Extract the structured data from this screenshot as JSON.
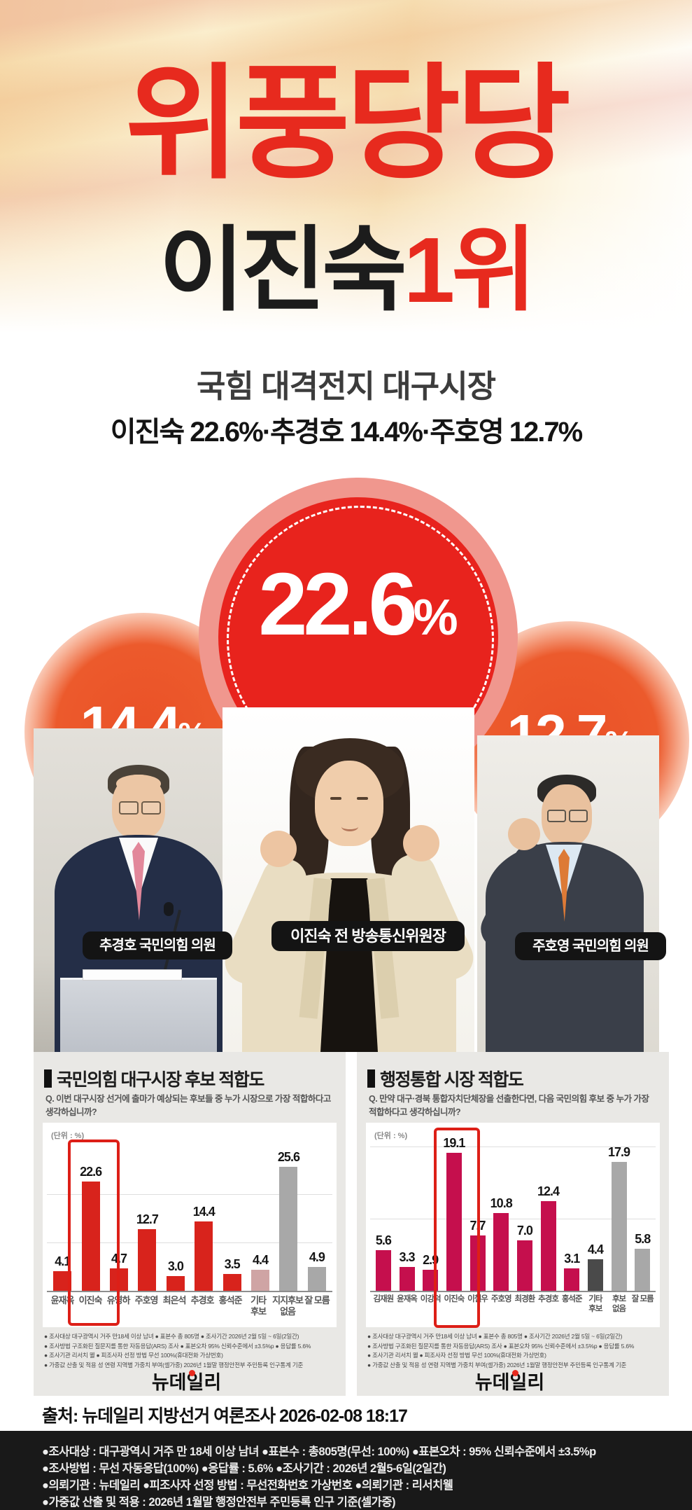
{
  "hero": {
    "title": "위풍당당",
    "name": "이진숙",
    "rank": "1위",
    "tagline": "국힘 대격전지 대구시장",
    "stat_line": "이진숙 22.6%·추경호 14.4%·주호영 12.7%"
  },
  "bubbles": {
    "main": {
      "value": "22.6",
      "unit": "%"
    },
    "left": {
      "value": "14.4",
      "unit": "%"
    },
    "right": {
      "value": "12.7",
      "unit": "%"
    }
  },
  "people": [
    {
      "label": "추경호 국민의힘 의원"
    },
    {
      "label": "이진숙 전 방송통신위원장"
    },
    {
      "label": "주호영 국민의힘 의원"
    }
  ],
  "chart_data": [
    {
      "type": "bar",
      "title": "국민의힘 대구시장 후보 적합도",
      "question": "Q. 이번 대구시장 선거에 출마가 예상되는 후보들 중 누가 시장으로 가장 적합하다고 생각하십니까?",
      "unit_label": "(단위 : %)",
      "categories": [
        "윤재옥",
        "이진숙",
        "유영하",
        "주호영",
        "최은석",
        "추경호",
        "홍석준",
        "기타 후보",
        "지지후보 없음",
        "잘 모름"
      ],
      "value_labels": [
        "4.1",
        "22.6",
        "4.7",
        "12.7",
        "3.0",
        "14.4",
        "3.5",
        "4.4",
        "25.6",
        "4.9"
      ],
      "values": [
        4.1,
        22.6,
        4.7,
        12.7,
        3.0,
        14.4,
        3.5,
        4.4,
        25.6,
        4.9
      ],
      "bar_roles": [
        "red",
        "red",
        "red",
        "red",
        "red",
        "red",
        "red",
        "pink",
        "gray",
        "gray"
      ],
      "highlight_index": 1,
      "ylim": [
        0,
        30
      ],
      "gridlines": [
        10,
        20
      ],
      "legend": "none"
    },
    {
      "type": "bar",
      "title": "행정통합 시장 적합도",
      "question": "Q. 만약 대구·경북 통합자치단체장을 선출한다면, 다음 국민의힘 후보 중 누가 가장 적합하다고 생각하십니까?",
      "unit_label": "(단위 : %)",
      "categories": [
        "김재원",
        "윤재옥",
        "이강덕",
        "이진숙",
        "이철우",
        "주호영",
        "최경환",
        "추경호",
        "홍석준",
        "기타 후보",
        "후보 없음",
        "잘 모름"
      ],
      "value_labels": [
        "5.6",
        "3.3",
        "2.9",
        "19.1",
        "7.7",
        "10.8",
        "7.0",
        "12.4",
        "3.1",
        "4.4",
        "17.9",
        "5.8"
      ],
      "values": [
        5.6,
        3.3,
        2.9,
        19.1,
        7.7,
        10.8,
        7.0,
        12.4,
        3.1,
        4.4,
        17.9,
        5.8
      ],
      "bar_roles": [
        "crimson",
        "crimson",
        "crimson",
        "crimson",
        "crimson",
        "crimson",
        "crimson",
        "crimson",
        "crimson",
        "dark",
        "gray",
        "gray"
      ],
      "highlight_index": 3,
      "ylim": [
        0,
        22
      ],
      "gridlines": [
        10,
        20
      ],
      "legend": "none"
    }
  ],
  "panel_footnotes": [
    "● 조사대상 대구광역시 거주 만18세 이상 남녀 ● 표본수 총 805명 ● 조사기간 2026년 2월 5일 ~ 6일(2일간)",
    "● 조사방법 구조화된 질문지를 통한 자동응답(ARS) 조사 ● 표본오차 95% 신뢰수준에서 ±3.5%p ● 응답률 5.6%",
    "● 조사기관 리서치 웰 ● 피조사자 선정 방법 무선 100%(휴대전화 가상번호)",
    "● 가중값 산출 및 적용 성 연령 지역별 가중치 부여(셀가중) 2026년 1월말 행정안전부 주민등록 인구통계 기준"
  ],
  "logo_text": "뉴데일리",
  "source_line": "출처: 뉴데일리 지방선거 여론조사 2026-02-08 18:17",
  "footer_lines": [
    "●조사대상 : 대구광역시 거주 만 18세 이상 남녀 ●표본수 : 총805명(무선: 100%) ●표본오차 : 95% 신뢰수준에서 ±3.5%p",
    "●조사방법 : 무선 자동응답(100%) ●응답률 : 5.6% ●조사기간 : 2026년 2월5-6일(2일간)",
    "●의뢰기관 : 뉴데일리 ●피조사자 선정 방법 : 무선전화번호 가상번호 ●의뢰기관 : 리서치웰",
    "●가중값 산출 및 적용 : 2026년 1월말 행정안전부 주민등록 인구 기준(셀가중)"
  ],
  "colors": {
    "accent_red": "#e72a1e",
    "bar_red": "#d8231c",
    "bar_crimson": "#c50f4d",
    "bar_pink": "#cfa4a4",
    "bar_gray": "#a8a8a8",
    "bar_dark": "#4a4a4a",
    "highlight_box": "#dd1f17"
  }
}
